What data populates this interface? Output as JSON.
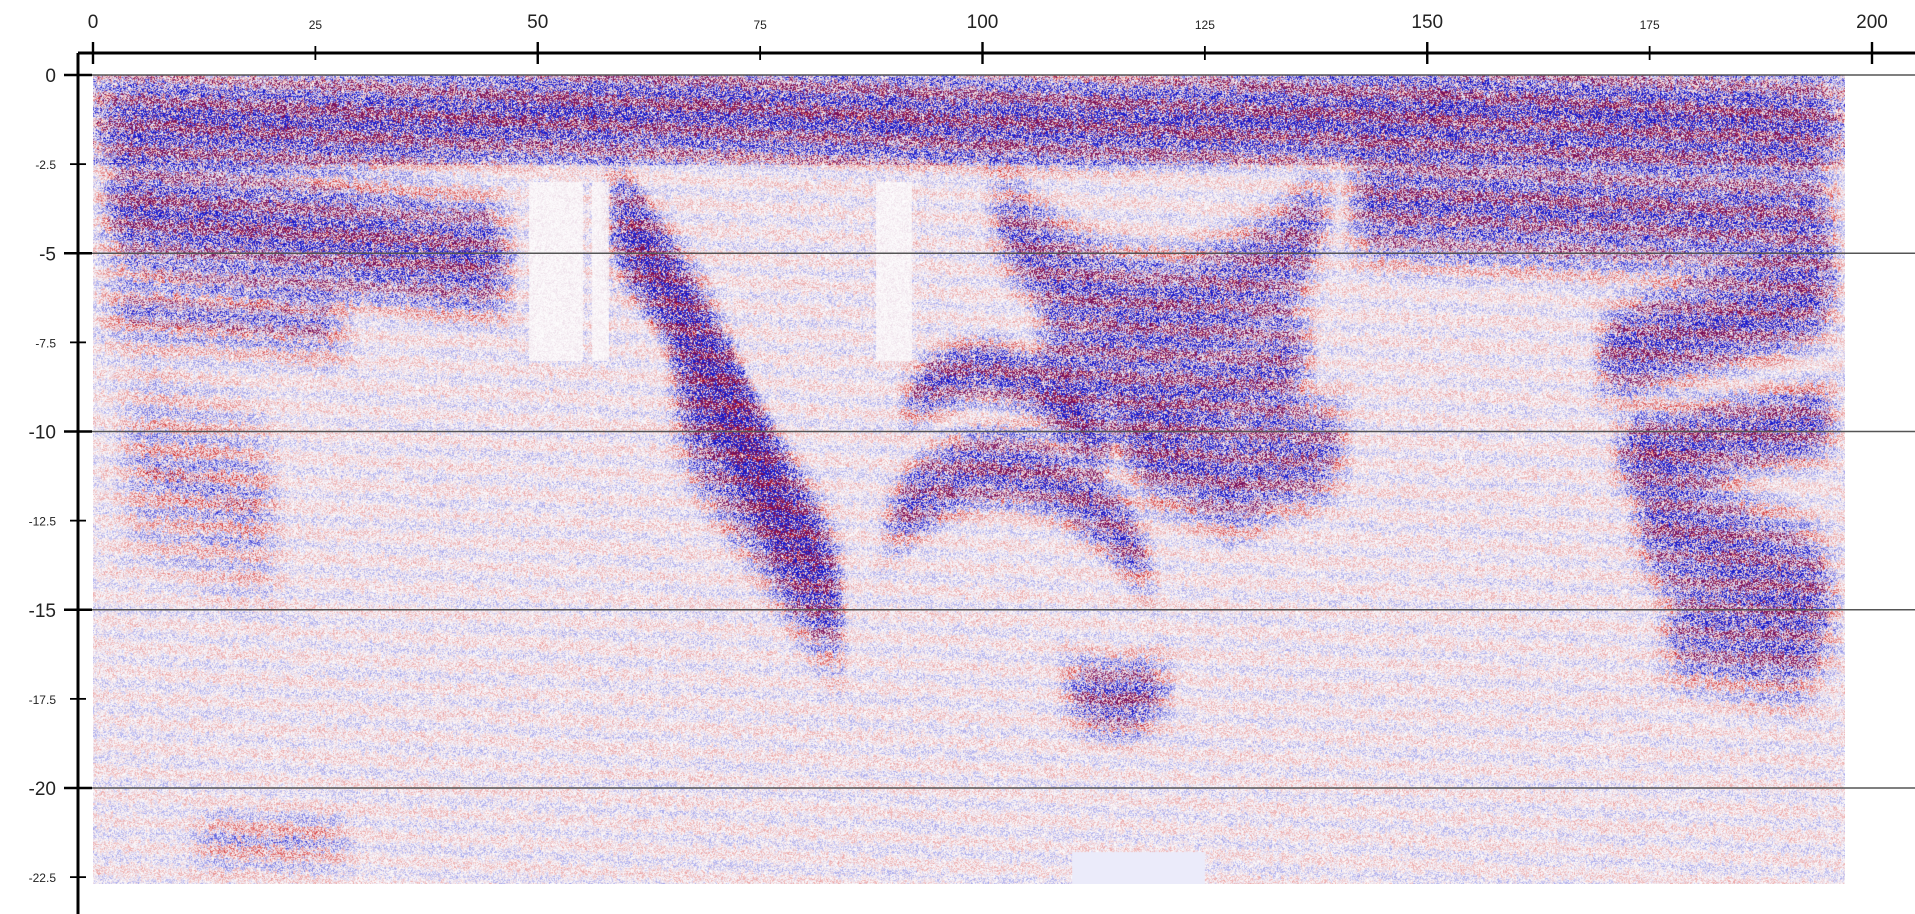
{
  "chart_data": {
    "type": "heatmap",
    "description_kind": "seismic-section",
    "title": "",
    "xlabel": "",
    "ylabel": "",
    "xlim": [
      0,
      200
    ],
    "ylim": [
      -24,
      0
    ],
    "data_extent": {
      "x": [
        0,
        197
      ],
      "y": [
        -22.7,
        0
      ]
    },
    "x_ticks": {
      "major": [
        {
          "value": 0,
          "label": "0"
        },
        {
          "value": 50,
          "label": "50"
        },
        {
          "value": 100,
          "label": "100"
        },
        {
          "value": 150,
          "label": "150"
        },
        {
          "value": 200,
          "label": "200"
        }
      ],
      "minor": [
        {
          "value": 25,
          "label": "25"
        },
        {
          "value": 75,
          "label": "75"
        },
        {
          "value": 125,
          "label": "125"
        },
        {
          "value": 175,
          "label": "175"
        }
      ]
    },
    "y_ticks": {
      "major": [
        {
          "value": 0,
          "label": "0"
        },
        {
          "value": -5,
          "label": "-5"
        },
        {
          "value": -10,
          "label": "-10"
        },
        {
          "value": -15,
          "label": "-15"
        },
        {
          "value": -20,
          "label": "-20"
        }
      ],
      "minor": [
        {
          "value": -2.5,
          "label": "-2.5"
        },
        {
          "value": -7.5,
          "label": "-7.5"
        },
        {
          "value": -12.5,
          "label": "-12.5"
        },
        {
          "value": -17.5,
          "label": "-17.5"
        },
        {
          "value": -22.5,
          "label": "-22.5"
        }
      ]
    },
    "gridlines_y": [
      0,
      -5,
      -10,
      -15,
      -20
    ],
    "grid": "horizontal major lines",
    "colors": {
      "positive": "#cc1111",
      "negative": "#1a1acc",
      "mixed": "#7a0f5a",
      "background": "#ffffff",
      "grid": "#555555",
      "axis": "#000000"
    }
  }
}
